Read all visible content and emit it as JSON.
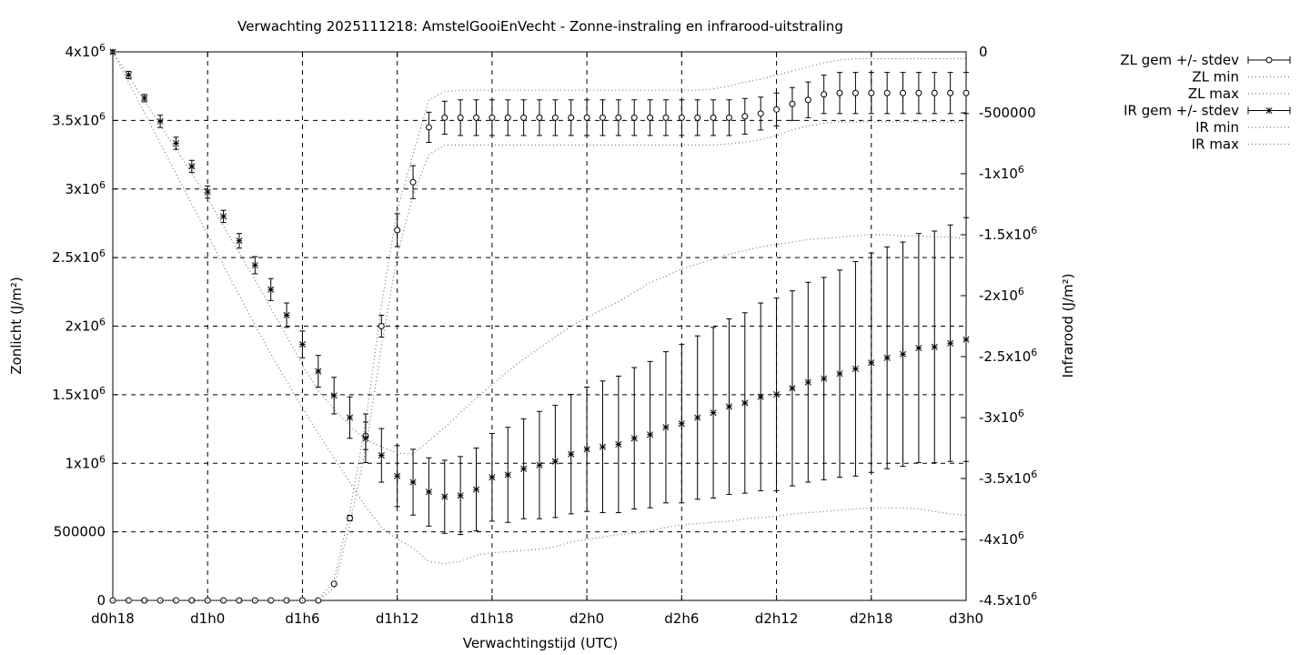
{
  "chart_data": {
    "type": "line",
    "title": "Verwachting 2025111218: AmstelGooiEnVecht - Zonne-instraling en infrarood-uitstraling",
    "xlabel": "Verwachtingstijd (UTC)",
    "ylabel": "Zonlicht (J/m²)",
    "y2label": "Infrarood (J/m²)",
    "xlim": [
      18,
      72
    ],
    "ylim": [
      0,
      4000000
    ],
    "y2lim": [
      -4500000,
      0
    ],
    "grid": true,
    "legend_position": "outside-top-right",
    "x_ticks": [
      {
        "v": 18,
        "label": "d0h18"
      },
      {
        "v": 24,
        "label": "d1h0"
      },
      {
        "v": 30,
        "label": "d1h6"
      },
      {
        "v": 36,
        "label": "d1h12"
      },
      {
        "v": 42,
        "label": "d1h18"
      },
      {
        "v": 48,
        "label": "d2h0"
      },
      {
        "v": 54,
        "label": "d2h6"
      },
      {
        "v": 60,
        "label": "d2h12"
      },
      {
        "v": 66,
        "label": "d2h18"
      },
      {
        "v": 72,
        "label": "d3h0"
      }
    ],
    "y_ticks": [
      {
        "v": 0,
        "m": "0",
        "e": ""
      },
      {
        "v": 500000,
        "m": "500000",
        "e": ""
      },
      {
        "v": 1000000,
        "m": "1x10",
        "e": "6"
      },
      {
        "v": 1500000,
        "m": "1.5x10",
        "e": "6"
      },
      {
        "v": 2000000,
        "m": "2x10",
        "e": "6"
      },
      {
        "v": 2500000,
        "m": "2.5x10",
        "e": "6"
      },
      {
        "v": 3000000,
        "m": "3x10",
        "e": "6"
      },
      {
        "v": 3500000,
        "m": "3.5x10",
        "e": "6"
      },
      {
        "v": 4000000,
        "m": "4x10",
        "e": "6"
      }
    ],
    "y2_ticks": [
      {
        "v": 0,
        "m": "0",
        "e": ""
      },
      {
        "v": -500000,
        "m": "-500000",
        "e": ""
      },
      {
        "v": -1000000,
        "m": "-1x10",
        "e": "6"
      },
      {
        "v": -1500000,
        "m": "-1.5x10",
        "e": "6"
      },
      {
        "v": -2000000,
        "m": "-2x10",
        "e": "6"
      },
      {
        "v": -2500000,
        "m": "-2.5x10",
        "e": "6"
      },
      {
        "v": -3000000,
        "m": "-3x10",
        "e": "6"
      },
      {
        "v": -3500000,
        "m": "-3.5x10",
        "e": "6"
      },
      {
        "v": -4000000,
        "m": "-4x10",
        "e": "6"
      },
      {
        "v": -4500000,
        "m": "-4.5x10",
        "e": "6"
      }
    ],
    "x": [
      18,
      19,
      20,
      21,
      22,
      23,
      24,
      25,
      26,
      27,
      28,
      29,
      30,
      31,
      32,
      33,
      34,
      35,
      36,
      37,
      38,
      39,
      40,
      41,
      42,
      43,
      44,
      45,
      46,
      47,
      48,
      49,
      50,
      51,
      52,
      53,
      54,
      55,
      56,
      57,
      58,
      59,
      60,
      61,
      62,
      63,
      64,
      65,
      66,
      67,
      68,
      69,
      70,
      71,
      72
    ],
    "series": [
      {
        "name": "ZL gem +/- stdev",
        "axis": "y",
        "style": "points-circle-errorbars",
        "values": [
          0,
          0,
          0,
          0,
          0,
          0,
          0,
          0,
          0,
          0,
          0,
          0,
          0,
          0,
          120000,
          600000,
          1200000,
          2000000,
          2700000,
          3050000,
          3450000,
          3520000,
          3520000,
          3520000,
          3520000,
          3520000,
          3520000,
          3520000,
          3520000,
          3520000,
          3520000,
          3520000,
          3520000,
          3520000,
          3520000,
          3520000,
          3520000,
          3520000,
          3520000,
          3520000,
          3530000,
          3550000,
          3580000,
          3620000,
          3650000,
          3690000,
          3700000,
          3700000,
          3700000,
          3700000,
          3700000,
          3700000,
          3700000,
          3700000,
          3700000
        ],
        "stdev": [
          0,
          0,
          0,
          0,
          0,
          0,
          0,
          0,
          0,
          0,
          0,
          0,
          0,
          0,
          10000,
          20000,
          100000,
          80000,
          120000,
          120000,
          110000,
          120000,
          130000,
          130000,
          130000,
          130000,
          130000,
          130000,
          130000,
          130000,
          130000,
          130000,
          130000,
          130000,
          130000,
          130000,
          130000,
          130000,
          130000,
          130000,
          130000,
          120000,
          120000,
          120000,
          130000,
          140000,
          150000,
          150000,
          150000,
          150000,
          150000,
          150000,
          150000,
          150000,
          150000
        ]
      },
      {
        "name": "ZL min",
        "axis": "y",
        "style": "dotted",
        "values": [
          0,
          0,
          0,
          0,
          0,
          0,
          0,
          0,
          0,
          0,
          0,
          0,
          0,
          0,
          90000,
          560000,
          1100000,
          1850000,
          2520000,
          2950000,
          3250000,
          3320000,
          3320000,
          3320000,
          3320000,
          3320000,
          3320000,
          3320000,
          3320000,
          3320000,
          3320000,
          3320000,
          3320000,
          3320000,
          3320000,
          3320000,
          3320000,
          3320000,
          3320000,
          3330000,
          3340000,
          3360000,
          3390000,
          3430000,
          3460000,
          3480000,
          3490000,
          3490000,
          3490000,
          3490000,
          3490000,
          3490000,
          3490000,
          3490000,
          3490000
        ]
      },
      {
        "name": "ZL max",
        "axis": "y",
        "style": "dotted",
        "values": [
          0,
          0,
          0,
          0,
          0,
          0,
          0,
          0,
          0,
          0,
          0,
          0,
          0,
          0,
          150000,
          650000,
          1300000,
          2150000,
          2850000,
          3250000,
          3650000,
          3710000,
          3720000,
          3720000,
          3720000,
          3720000,
          3720000,
          3720000,
          3720000,
          3720000,
          3720000,
          3720000,
          3720000,
          3720000,
          3720000,
          3720000,
          3720000,
          3720000,
          3730000,
          3750000,
          3780000,
          3800000,
          3830000,
          3860000,
          3890000,
          3920000,
          3940000,
          3950000,
          3950000,
          3950000,
          3950000,
          3950000,
          3950000,
          3950000,
          3950000
        ]
      },
      {
        "name": "IR gem +/- stdev",
        "axis": "y2",
        "style": "points-star-errorbars",
        "values": [
          0,
          -190000,
          -380000,
          -570000,
          -750000,
          -940000,
          -1150000,
          -1350000,
          -1550000,
          -1750000,
          -1950000,
          -2160000,
          -2400000,
          -2620000,
          -2820000,
          -3000000,
          -3170000,
          -3310000,
          -3480000,
          -3530000,
          -3610000,
          -3650000,
          -3640000,
          -3590000,
          -3490000,
          -3470000,
          -3420000,
          -3390000,
          -3360000,
          -3300000,
          -3260000,
          -3240000,
          -3220000,
          -3170000,
          -3140000,
          -3080000,
          -3050000,
          -3000000,
          -2960000,
          -2910000,
          -2880000,
          -2830000,
          -2810000,
          -2760000,
          -2710000,
          -2680000,
          -2640000,
          -2600000,
          -2550000,
          -2510000,
          -2480000,
          -2430000,
          -2420000,
          -2390000,
          -2360000
        ],
        "stdev": [
          15000,
          30000,
          30000,
          50000,
          50000,
          50000,
          50000,
          50000,
          60000,
          70000,
          90000,
          100000,
          110000,
          130000,
          150000,
          170000,
          200000,
          220000,
          250000,
          270000,
          280000,
          300000,
          320000,
          340000,
          360000,
          390000,
          410000,
          440000,
          460000,
          490000,
          510000,
          540000,
          560000,
          580000,
          600000,
          620000,
          650000,
          670000,
          700000,
          720000,
          740000,
          770000,
          790000,
          800000,
          820000,
          830000,
          850000,
          880000,
          900000,
          910000,
          920000,
          940000,
          950000,
          970000,
          1000000
        ]
      },
      {
        "name": "IR min",
        "axis": "y2",
        "style": "dotted",
        "values": [
          0,
          -250000,
          -500000,
          -750000,
          -1000000,
          -1250000,
          -1500000,
          -1750000,
          -2000000,
          -2240000,
          -2480000,
          -2700000,
          -2920000,
          -3130000,
          -3330000,
          -3530000,
          -3730000,
          -3900000,
          -4000000,
          -4070000,
          -4180000,
          -4200000,
          -4180000,
          -4130000,
          -4110000,
          -4100000,
          -4090000,
          -4080000,
          -4060000,
          -4020000,
          -4000000,
          -3980000,
          -3960000,
          -3950000,
          -3930000,
          -3900000,
          -3880000,
          -3870000,
          -3860000,
          -3850000,
          -3830000,
          -3820000,
          -3810000,
          -3790000,
          -3780000,
          -3770000,
          -3760000,
          -3750000,
          -3740000,
          -3740000,
          -3740000,
          -3750000,
          -3770000,
          -3790000,
          -3800000
        ]
      },
      {
        "name": "IR max",
        "axis": "y2",
        "style": "dotted",
        "values": [
          0,
          -200000,
          -400000,
          -600000,
          -800000,
          -1000000,
          -1200000,
          -1430000,
          -1650000,
          -1870000,
          -2100000,
          -2330000,
          -2570000,
          -2780000,
          -2930000,
          -3070000,
          -3180000,
          -3240000,
          -3290000,
          -3300000,
          -3190000,
          -3080000,
          -2960000,
          -2840000,
          -2730000,
          -2620000,
          -2520000,
          -2430000,
          -2340000,
          -2250000,
          -2180000,
          -2110000,
          -2050000,
          -1970000,
          -1890000,
          -1840000,
          -1780000,
          -1740000,
          -1700000,
          -1660000,
          -1630000,
          -1600000,
          -1580000,
          -1560000,
          -1540000,
          -1530000,
          -1520000,
          -1510000,
          -1500000,
          -1500000,
          -1510000,
          -1510000,
          -1520000,
          -1520000,
          -1530000
        ]
      }
    ]
  }
}
